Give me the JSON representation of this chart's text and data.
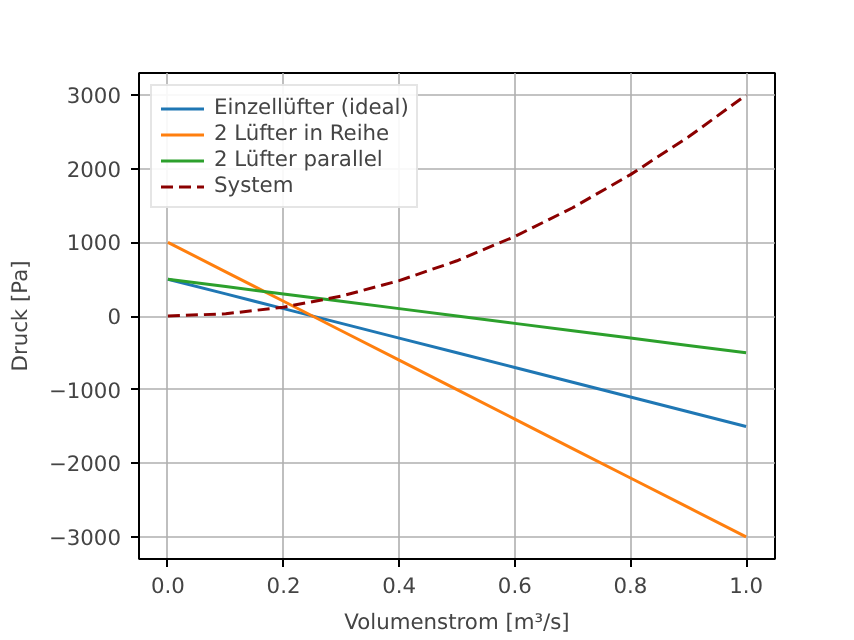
{
  "chart_data": {
    "type": "line",
    "xlabel": "Volumenstrom [m³/s]",
    "ylabel": "Druck [Pa]",
    "x": [
      0,
      0.1,
      0.2,
      0.3,
      0.4,
      0.5,
      0.6,
      0.7,
      0.8,
      0.9,
      1.0
    ],
    "series": [
      {
        "name": "Einzellüfter (ideal)",
        "color": "#1f77b4",
        "values": [
          500,
          300,
          100,
          -100,
          -300,
          -500,
          -700,
          -900,
          -1100,
          -1300,
          -1500
        ]
      },
      {
        "name": "2 Lüfter in Reihe",
        "color": "#ff7f0e",
        "values": [
          1000,
          600,
          200,
          -200,
          -600,
          -1000,
          -1400,
          -1800,
          -2200,
          -2600,
          -3000
        ]
      },
      {
        "name": "2 Lüfter parallel",
        "color": "#2ca02c",
        "values": [
          500,
          400,
          300,
          200,
          100,
          0,
          -100,
          -200,
          -300,
          -400,
          -500
        ]
      },
      {
        "name": "System",
        "color": "#8b0000",
        "line_style": "dashed",
        "values": [
          0,
          30,
          120,
          270,
          480,
          750,
          1080,
          1470,
          1920,
          2430,
          3000
        ]
      }
    ],
    "xlim": [
      -0.05,
      1.05
    ],
    "xticks": [
      {
        "value": 0,
        "label": "0.0"
      },
      {
        "value": 0.2,
        "label": "0.2"
      },
      {
        "value": 0.4,
        "label": "0.4"
      },
      {
        "value": 0.6,
        "label": "0.6"
      },
      {
        "value": 0.8,
        "label": "0.8"
      },
      {
        "value": 1.0,
        "label": "1.0"
      }
    ],
    "ylim": [
      -3300,
      3300
    ],
    "yticks": [
      {
        "value": -3000,
        "label": "−3000"
      },
      {
        "value": -2000,
        "label": "−2000"
      },
      {
        "value": -1000,
        "label": "−1000"
      },
      0,
      1000,
      2000,
      3000
    ],
    "grid": true,
    "legend": "top left",
    "line_style": "solid",
    "marker": "none"
  }
}
